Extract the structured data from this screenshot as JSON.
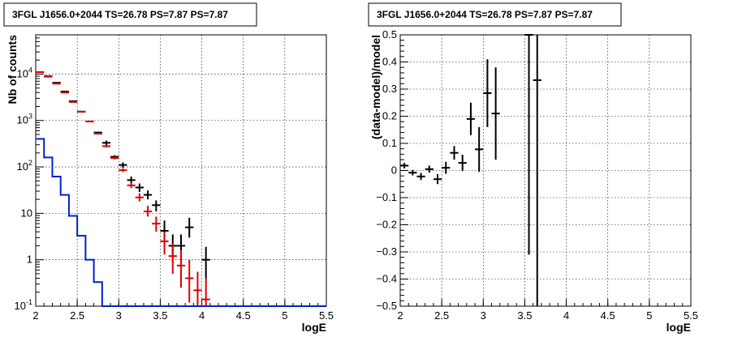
{
  "chart_data": [
    {
      "type": "scatter",
      "title": "3FGL J1656.0+2044 TS=26.78 PS=7.87 PS=7.87",
      "xlabel": "logE",
      "ylabel": "Nb of counts",
      "xlim": [
        2,
        5.5
      ],
      "ylim": [
        0.1,
        70000
      ],
      "yscale": "log",
      "grid": true,
      "x_ticks": [
        "2",
        "2.5",
        "3",
        "3.5",
        "4",
        "4.5",
        "5",
        "5.5"
      ],
      "y_ticks": [
        "10^-1",
        "1",
        "10",
        "10^2",
        "10^3",
        "10^4"
      ],
      "colors": {
        "data": "#000000",
        "model": "#e00000",
        "step": "#0020d0"
      },
      "series": [
        {
          "kind": "errorbar",
          "x": [
            2.05,
            2.15,
            2.25,
            2.35,
            2.45,
            2.55,
            2.65,
            2.75,
            2.85,
            2.95,
            3.05,
            3.15,
            3.25,
            3.35,
            3.45,
            3.55,
            3.65,
            3.75,
            3.85,
            3.95,
            4.05
          ],
          "y": [
            11000,
            9000,
            6500,
            4200,
            2600,
            1550,
            950,
            550,
            330,
            165,
            110,
            52,
            36,
            25,
            15,
            4.2,
            2.0,
            2.0,
            5.0,
            null,
            1.0
          ],
          "ylo": [
            10800,
            8800,
            6350,
            4100,
            2550,
            1510,
            920,
            530,
            290,
            155,
            95,
            42,
            29,
            20,
            11,
            2.2,
            0.9,
            0.9,
            3.0,
            null,
            0.4
          ],
          "yhi": [
            11200,
            9200,
            6650,
            4300,
            2650,
            1590,
            980,
            570,
            370,
            178,
            125,
            62,
            44,
            31,
            19,
            7.0,
            3.5,
            3.5,
            8.0,
            null,
            1.9
          ]
        },
        {
          "kind": "errorbar",
          "x": [
            2.05,
            2.15,
            2.25,
            2.35,
            2.45,
            2.55,
            2.65,
            2.75,
            2.85,
            2.95,
            3.05,
            3.15,
            3.25,
            3.35,
            3.45,
            3.55,
            3.65,
            3.75,
            3.85,
            3.95,
            4.05
          ],
          "y": [
            11000,
            8800,
            6200,
            4000,
            2500,
            1550,
            950,
            520,
            280,
            155,
            85,
            40,
            22,
            11,
            6.0,
            2.5,
            1.2,
            0.75,
            0.4,
            0.22,
            0.14
          ],
          "ylo": [
            10800,
            8650,
            6050,
            3900,
            2440,
            1510,
            920,
            500,
            265,
            145,
            78,
            35,
            18,
            8.5,
            4.0,
            1.3,
            0.5,
            0.25,
            0.12,
            0.1,
            0.1
          ],
          "yhi": [
            11200,
            8950,
            6350,
            4100,
            2560,
            1590,
            980,
            540,
            295,
            165,
            92,
            46,
            27,
            14.5,
            8.5,
            3.9,
            2.3,
            1.6,
            1.0,
            0.55,
            0.4
          ]
        },
        {
          "kind": "step",
          "x_edges": [
            2.0,
            2.1,
            2.2,
            2.3,
            2.4,
            2.5,
            2.6,
            2.7,
            2.8,
            2.9,
            3.0,
            5.5
          ],
          "y": [
            400,
            160,
            62,
            25,
            8.8,
            3.3,
            1.0,
            0.33,
            0.1,
            0.1,
            0.1
          ]
        }
      ]
    },
    {
      "type": "scatter",
      "title": "3FGL J1656.0+2044 TS=26.78 PS=7.87 PS=7.87",
      "xlabel": "logE",
      "ylabel": "(data-model)/model",
      "xlim": [
        2,
        5.5
      ],
      "ylim": [
        -0.5,
        0.5
      ],
      "grid": true,
      "x_ticks": [
        "2",
        "2.5",
        "3",
        "3.5",
        "4",
        "4.5",
        "5",
        "5.5"
      ],
      "y_ticks": [
        "-0.5",
        "-0.4",
        "-0.3",
        "-0.2",
        "-0.1",
        "0",
        "0.1",
        "0.2",
        "0.3",
        "0.4",
        "0.5"
      ],
      "series": [
        {
          "kind": "errorbar",
          "x": [
            2.05,
            2.15,
            2.25,
            2.35,
            2.45,
            2.55,
            2.65,
            2.75,
            2.85,
            2.95,
            3.05,
            3.15,
            3.55,
            3.65
          ],
          "y": [
            0.018,
            -0.008,
            -0.022,
            0.005,
            -0.032,
            0.01,
            0.065,
            0.028,
            0.19,
            0.078,
            0.285,
            0.21,
            0.5,
            0.333
          ],
          "ylo": [
            0.008,
            -0.018,
            -0.035,
            -0.008,
            -0.05,
            -0.012,
            0.04,
            -0.002,
            0.13,
            -0.005,
            0.16,
            0.04,
            -0.31,
            -0.5
          ],
          "yhi": [
            0.028,
            0.002,
            -0.009,
            0.018,
            -0.014,
            0.032,
            0.09,
            0.058,
            0.25,
            0.16,
            0.41,
            0.38,
            0.5,
            0.5
          ]
        }
      ]
    }
  ]
}
